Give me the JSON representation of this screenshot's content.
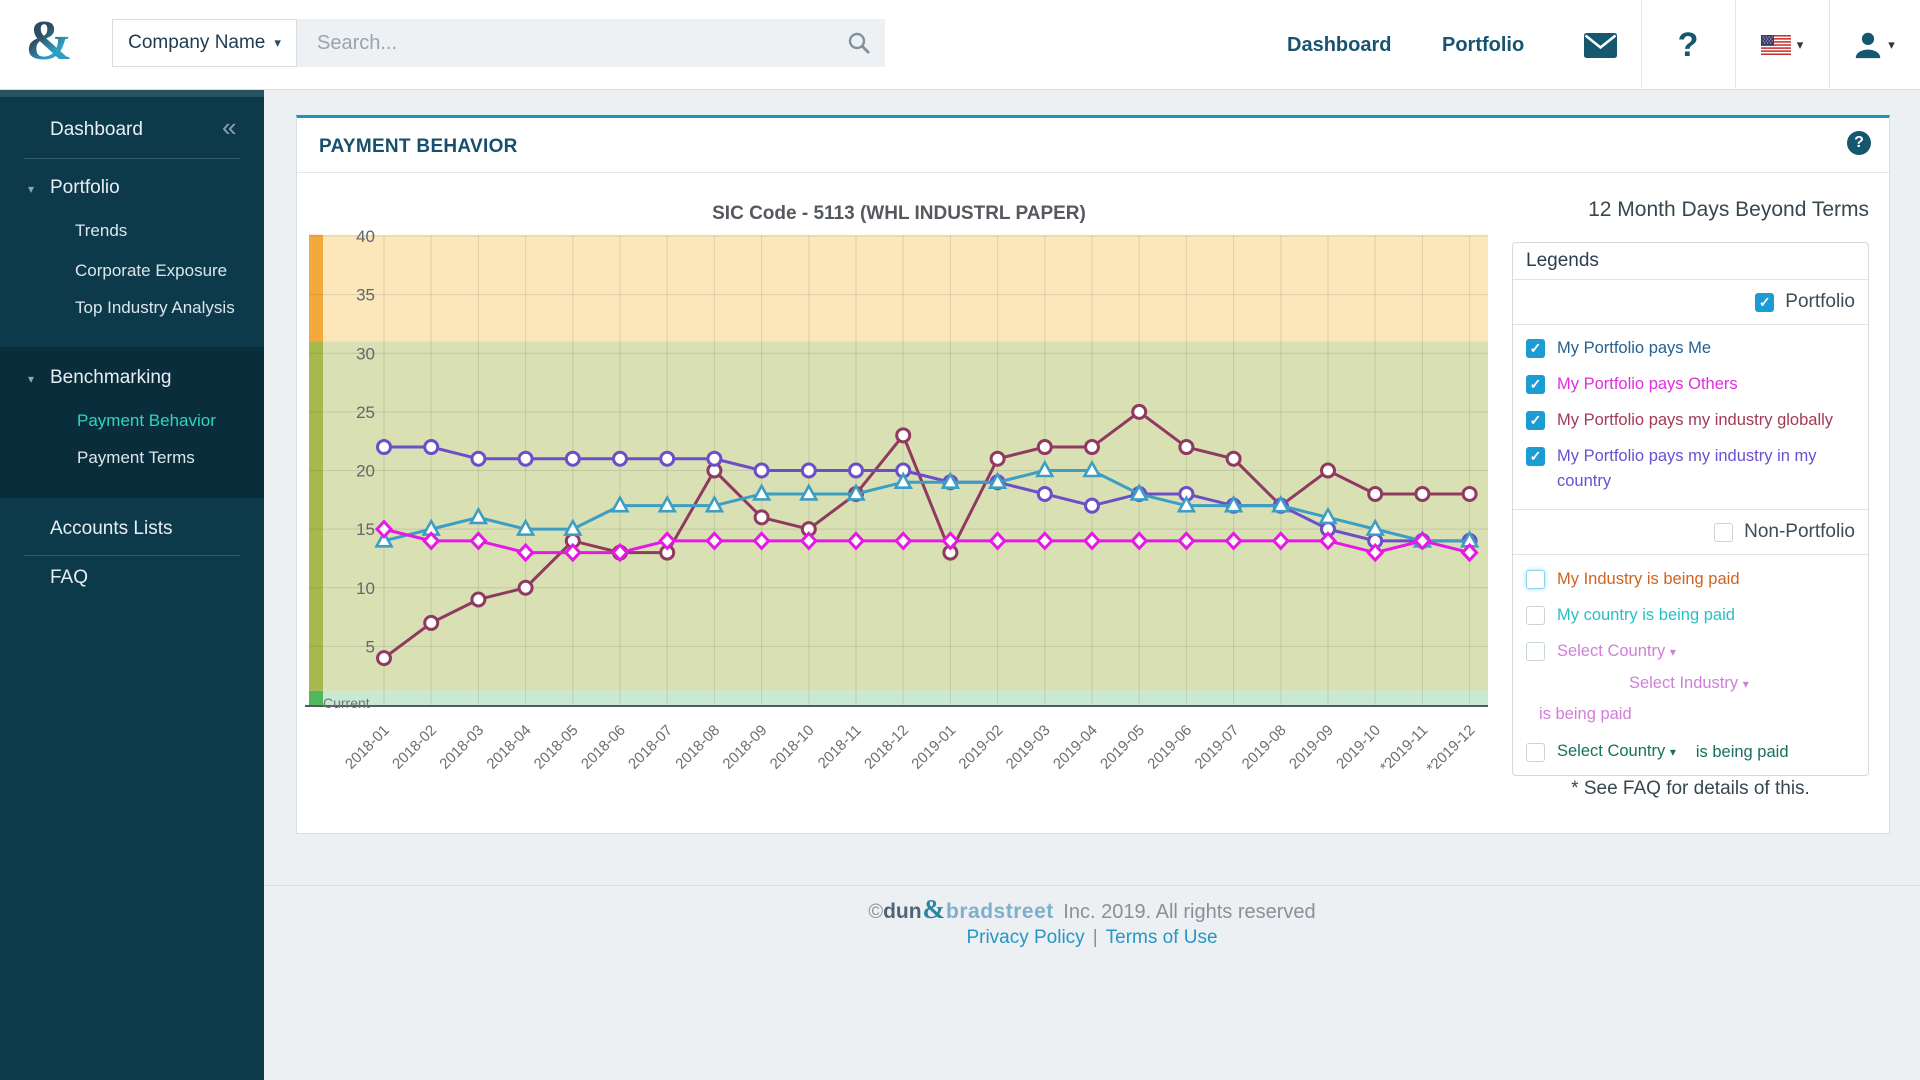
{
  "header": {
    "company_dropdown": "Company Name",
    "search_placeholder": "Search...",
    "nav": [
      "Dashboard",
      "Portfolio"
    ]
  },
  "sidebar": {
    "dashboard": "Dashboard",
    "portfolio": "Portfolio",
    "portfolio_children": [
      "Trends",
      "Corporate Exposure",
      "Top Industry Analysis"
    ],
    "benchmarking": "Benchmarking",
    "benchmarking_children": [
      "Payment Behavior",
      "Payment Terms"
    ],
    "active_item": "Payment Behavior",
    "accounts": "Accounts Lists",
    "faq": "FAQ",
    "active_color": "#2fd5c0"
  },
  "card": {
    "title": "PAYMENT BEHAVIOR"
  },
  "chart_data": {
    "type": "line",
    "title": "SIC Code - 5113 (WHL INDUSTRL PAPER)",
    "right_title": "12 Month Days Beyond Terms",
    "x": [
      "2018-01",
      "2018-02",
      "2018-03",
      "2018-04",
      "2018-05",
      "2018-06",
      "2018-07",
      "2018-08",
      "2018-09",
      "2018-10",
      "2018-11",
      "2018-12",
      "2019-01",
      "2019-02",
      "2019-03",
      "2019-04",
      "2019-05",
      "2019-06",
      "2019-07",
      "2019-08",
      "2019-09",
      "2019-10",
      "*2019-11",
      "*2019-12"
    ],
    "ylim": [
      0,
      40
    ],
    "yticks": [
      5,
      10,
      15,
      20,
      25,
      30,
      35,
      40
    ],
    "grid": true,
    "current_label": "Current",
    "bands": [
      {
        "from": 31,
        "to": 40.1,
        "color": "#fbe7ba",
        "edge": "#f4a93c"
      },
      {
        "from": 1.2,
        "to": 31,
        "color": "#d9e0b3",
        "edge": "#a6b94d"
      },
      {
        "from": 0,
        "to": 1.2,
        "color": "#c8ead3",
        "edge": "#4fb75c"
      }
    ],
    "series": [
      {
        "name": "My Portfolio pays Me",
        "color": "#3d9ec3",
        "marker": "triangle",
        "values": [
          14,
          15,
          16,
          15,
          15,
          17,
          17,
          17,
          18,
          18,
          18,
          19,
          19,
          19,
          20,
          20,
          18,
          17,
          17,
          17,
          16,
          15,
          14,
          14
        ]
      },
      {
        "name": "My Portfolio pays Others",
        "color": "#e518e5",
        "marker": "diamond",
        "values": [
          15,
          14,
          14,
          13,
          13,
          13,
          14,
          14,
          14,
          14,
          14,
          14,
          14,
          14,
          14,
          14,
          14,
          14,
          14,
          14,
          14,
          13,
          14,
          13
        ]
      },
      {
        "name": "My Portfolio pays my industry globally",
        "color": "#8f3a60",
        "marker": "circle",
        "values": [
          4,
          7,
          9,
          10,
          14,
          13,
          13,
          20,
          16,
          15,
          18,
          23,
          13,
          21,
          22,
          22,
          25,
          22,
          21,
          17,
          20,
          18,
          18,
          18
        ]
      },
      {
        "name": "My Portfolio pays my industry in my country",
        "color": "#6b4ec8",
        "marker": "circle",
        "values": [
          22,
          22,
          21,
          21,
          21,
          21,
          21,
          21,
          20,
          20,
          20,
          20,
          19,
          19,
          18,
          17,
          18,
          18,
          17,
          17,
          15,
          14,
          14,
          14
        ]
      }
    ]
  },
  "legends": {
    "title": "Legends",
    "portfolio_label": "Portfolio",
    "non_portfolio_label": "Non-Portfolio",
    "portfolio_items": [
      {
        "label": "My Portfolio pays Me",
        "color": "#24618e",
        "checked": true
      },
      {
        "label": "My Portfolio pays Others",
        "color": "#e22de2",
        "checked": true
      },
      {
        "label": "My Portfolio pays my industry globally",
        "color": "#a23a55",
        "checked": true
      },
      {
        "label": "My Portfolio pays my industry in my country",
        "color": "#6a4fd1",
        "checked": true
      }
    ],
    "non_portfolio_items": [
      {
        "label": "My Industry is being paid",
        "color": "#d2631f",
        "checked": false,
        "focused": true
      },
      {
        "label": "My country is being paid",
        "color": "#27bfc7",
        "checked": false
      }
    ],
    "country_industry_item": {
      "parts": [
        "Select Country",
        "Select Industry",
        "is being paid"
      ],
      "color": "#d07fd8",
      "checked": false
    },
    "country_item": {
      "parts": [
        "Select Country",
        "is being paid"
      ],
      "color": "#17705f",
      "checked": false
    },
    "footnote": "* See FAQ for details of this."
  },
  "footer": {
    "copyright_prefix": "©",
    "brand_dun": "dun",
    "brand_amp": "&",
    "brand_bradstreet": "bradstreet",
    "copyright_suffix": " Inc. 2019. All rights reserved",
    "links": [
      "Privacy Policy",
      "Terms of Use"
    ],
    "separator": "|"
  }
}
